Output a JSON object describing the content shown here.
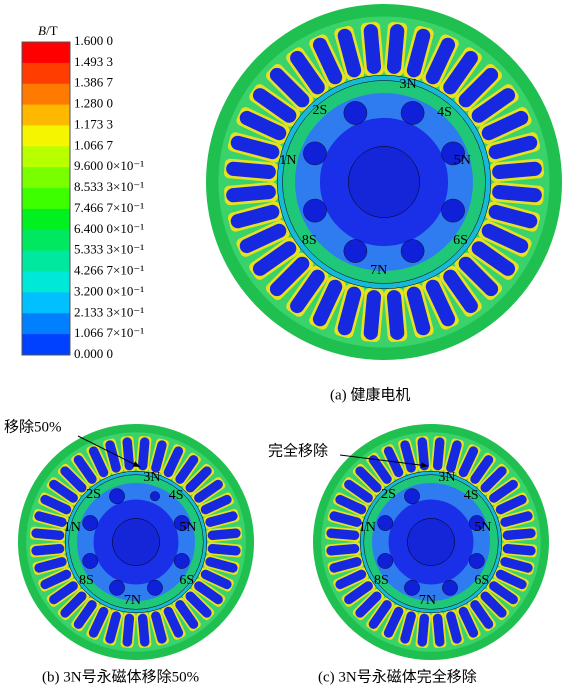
{
  "legend": {
    "symbol": "B",
    "unit": "/T",
    "labels": [
      "1.600 0",
      "1.493 3",
      "1.386 7",
      "1.280 0",
      "1.173 3",
      "1.066 7",
      "9.600 0×10⁻¹",
      "8.533 3×10⁻¹",
      "7.466 7×10⁻¹",
      "6.400 0×10⁻¹",
      "5.333 3×10⁻¹",
      "4.266 7×10⁻¹",
      "3.200 0×10⁻¹",
      "2.133 3×10⁻¹",
      "1.066 7×10⁻¹",
      "0.000 0"
    ]
  },
  "figures": [
    {
      "caption": "(a)  健康电机",
      "poles": [
        "3N",
        "4S",
        "5N",
        "6S",
        "7N",
        "8S",
        "1N",
        "2S"
      ]
    },
    {
      "caption": "(b)  3N号永磁体移除50%",
      "poles": [
        "3N",
        "4S",
        "5N",
        "6S",
        "7N",
        "8S",
        "1N",
        "2S"
      ],
      "annotation": "移除50%"
    },
    {
      "caption": "(c)  3N号永磁体完全移除",
      "poles": [
        "3N",
        "4S",
        "5N",
        "6S",
        "7N",
        "8S",
        "1N",
        "2S"
      ],
      "annotation": "完全移除"
    }
  ]
}
